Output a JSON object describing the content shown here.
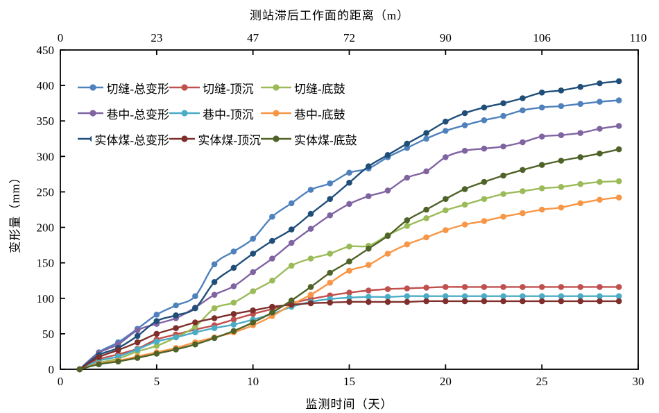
{
  "chart_data": {
    "type": "line",
    "title": "",
    "grid": false,
    "legend_position": "upper-left-inside",
    "top_axis": {
      "label": "测站滞后工作面的距离（m）",
      "ticks": [
        "0",
        "23",
        "47",
        "72",
        "90",
        "106",
        "110"
      ]
    },
    "bottom_axis": {
      "label": "监测时间（天）",
      "ticks": [
        0,
        5,
        10,
        15,
        20,
        25,
        30
      ],
      "range": [
        0,
        30
      ]
    },
    "left_axis": {
      "label": "变形量（mm）",
      "ticks": [
        0,
        50,
        100,
        150,
        200,
        250,
        300,
        350,
        400,
        450
      ],
      "range": [
        0,
        450
      ]
    },
    "x_days": [
      1,
      2,
      3,
      4,
      5,
      6,
      7,
      8,
      9,
      10,
      11,
      12,
      13,
      14,
      15,
      16,
      17,
      18,
      19,
      20,
      21,
      22,
      23,
      24,
      25,
      26,
      27,
      28,
      29
    ],
    "series": [
      {
        "name": "切缝-总变形",
        "color": "#4F81BD",
        "values": [
          0,
          24,
          38,
          57,
          77,
          90,
          103,
          148,
          166,
          184,
          215,
          234,
          253,
          262,
          277,
          283,
          299,
          312,
          325,
          336,
          344,
          351,
          357,
          365,
          369,
          371,
          374,
          377,
          379
        ]
      },
      {
        "name": "切缝-顶沉",
        "color": "#C0504D",
        "values": [
          0,
          14,
          21,
          29,
          42,
          49,
          56,
          62,
          70,
          78,
          85,
          93,
          99,
          104,
          108,
          111,
          113,
          114,
          115,
          116,
          116,
          116,
          116,
          116,
          116,
          116,
          116,
          116,
          116
        ]
      },
      {
        "name": "切缝-底鼓",
        "color": "#9BBB59",
        "values": [
          0,
          9,
          15,
          25,
          33,
          45,
          60,
          86,
          94,
          110,
          125,
          146,
          156,
          163,
          173,
          174,
          189,
          202,
          213,
          224,
          232,
          240,
          247,
          251,
          255,
          257,
          261,
          264,
          265
        ]
      },
      {
        "name": "巷中-总变形",
        "color": "#8064A2",
        "values": [
          0,
          23,
          35,
          55,
          64,
          72,
          87,
          105,
          117,
          137,
          156,
          178,
          198,
          217,
          233,
          244,
          252,
          270,
          279,
          299,
          308,
          311,
          314,
          320,
          328,
          330,
          333,
          339,
          343
        ]
      },
      {
        "name": "巷中-顶沉",
        "color": "#4BACC6",
        "values": [
          0,
          12,
          18,
          28,
          39,
          45,
          52,
          58,
          63,
          70,
          78,
          88,
          95,
          99,
          101,
          102,
          102,
          103,
          103,
          103,
          103,
          103,
          103,
          103,
          103,
          103,
          103,
          103,
          103
        ]
      },
      {
        "name": "巷中-底鼓",
        "color": "#F79646",
        "values": [
          0,
          8,
          12,
          18,
          24,
          30,
          38,
          45,
          52,
          62,
          75,
          91,
          105,
          122,
          139,
          147,
          163,
          176,
          186,
          196,
          204,
          209,
          215,
          220,
          225,
          228,
          234,
          239,
          242
        ]
      },
      {
        "name": "实体煤-总变形",
        "color": "#1F4E79",
        "values": [
          0,
          20,
          30,
          47,
          68,
          76,
          86,
          123,
          143,
          163,
          181,
          197,
          219,
          240,
          263,
          286,
          302,
          318,
          333,
          349,
          361,
          369,
          375,
          382,
          390,
          393,
          398,
          403,
          406
        ]
      },
      {
        "name": "实体煤-顶沉",
        "color": "#7E2F2B",
        "values": [
          0,
          17,
          27,
          38,
          50,
          58,
          66,
          72,
          78,
          83,
          88,
          91,
          93,
          94,
          95,
          95,
          95,
          95,
          96,
          96,
          96,
          96,
          96,
          96,
          96,
          96,
          96,
          96,
          96
        ]
      },
      {
        "name": "实体煤-底鼓",
        "color": "#4F6228",
        "values": [
          0,
          7,
          11,
          16,
          22,
          28,
          35,
          44,
          54,
          66,
          80,
          97,
          116,
          136,
          152,
          170,
          188,
          210,
          225,
          240,
          254,
          264,
          273,
          281,
          288,
          294,
          299,
          304,
          310
        ]
      }
    ]
  }
}
